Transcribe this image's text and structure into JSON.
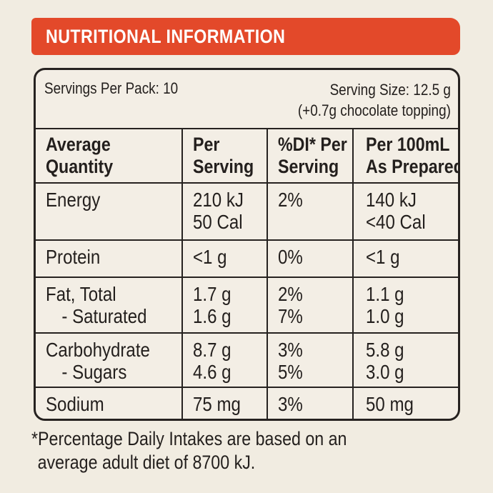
{
  "banner": {
    "title": "NUTRITIONAL INFORMATION"
  },
  "servings": {
    "per_pack": "Servings Per Pack: 10",
    "size_line1": "Serving Size: 12.5 g",
    "size_line2": "(+0.7g chocolate topping)"
  },
  "headers": {
    "col0_l1": "Average",
    "col0_l2": "Quantity",
    "col1_l1": "Per",
    "col1_l2": "Serving",
    "col2_l1": "%DI* Per",
    "col2_l2": "Serving",
    "col3_l1": "Per 100mL",
    "col3_l2": "As Prepared"
  },
  "rows": {
    "energy": {
      "name": "Energy",
      "per_serving_1": "210 kJ",
      "per_serving_2": "50 Cal",
      "di": "2%",
      "per100_1": "140 kJ",
      "per100_2": "<40 Cal"
    },
    "protein": {
      "name": "Protein",
      "per_serving": "<1 g",
      "di": "0%",
      "per100": "<1 g"
    },
    "fat": {
      "name": "Fat, Total",
      "sub_name": "- Saturated",
      "per_serving_1": "1.7 g",
      "per_serving_2": "1.6 g",
      "di_1": "2%",
      "di_2": "7%",
      "per100_1": "1.1 g",
      "per100_2": "1.0 g"
    },
    "carb": {
      "name": "Carbohydrate",
      "sub_name": "- Sugars",
      "per_serving_1": "8.7 g",
      "per_serving_2": "4.6 g",
      "di_1": "3%",
      "di_2": "5%",
      "per100_1": "5.8 g",
      "per100_2": "3.0 g"
    },
    "sodium": {
      "name": "Sodium",
      "per_serving": "75 mg",
      "di": "3%",
      "per100": "50 mg"
    }
  },
  "footnote": {
    "line1": "*Percentage Daily Intakes are based on an",
    "line2": "average adult diet of 8700 kJ."
  }
}
